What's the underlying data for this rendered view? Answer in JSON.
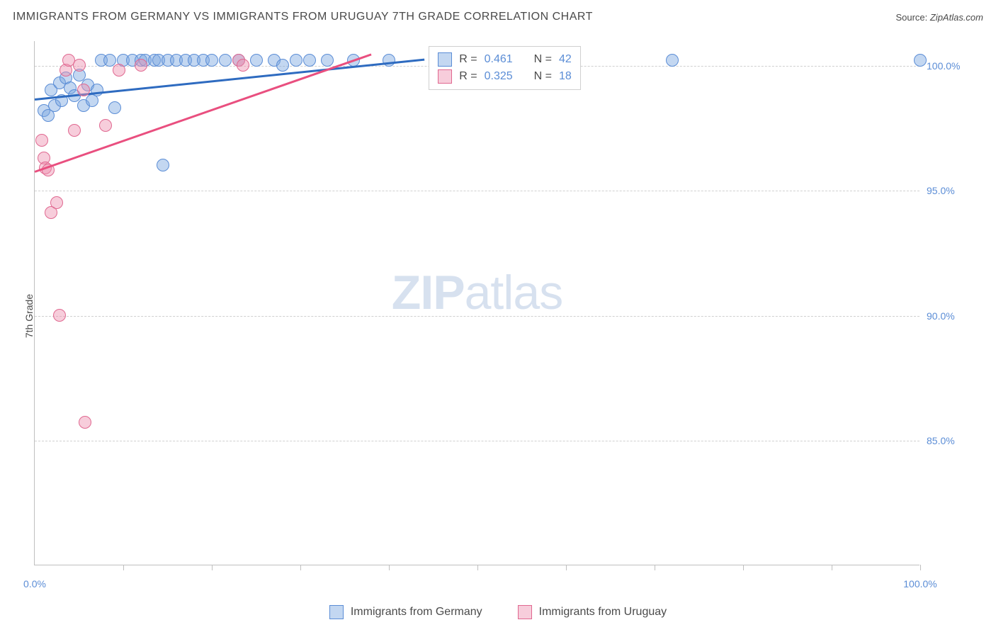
{
  "title": "IMMIGRANTS FROM GERMANY VS IMMIGRANTS FROM URUGUAY 7TH GRADE CORRELATION CHART",
  "source_label": "Source: ",
  "source_value": "ZipAtlas.com",
  "ylabel": "7th Grade",
  "watermark_bold": "ZIP",
  "watermark_rest": "atlas",
  "chart": {
    "type": "scatter",
    "background_color": "#ffffff",
    "grid_color": "#d0d0d0",
    "axis_color": "#bfbfbf",
    "xlim": [
      0,
      100
    ],
    "ylim": [
      80,
      101
    ],
    "x_ticks": [
      0,
      10,
      20,
      30,
      40,
      50,
      60,
      70,
      80,
      90,
      100
    ],
    "x_tick_labels": {
      "0": "0.0%",
      "100": "100.0%"
    },
    "y_gridlines": [
      85,
      90,
      95,
      100
    ],
    "y_tick_labels": {
      "85": "85.0%",
      "90": "90.0%",
      "95": "95.0%",
      "100": "100.0%"
    },
    "marker_radius": 9,
    "label_fontsize": 14,
    "label_color": "#5b8dd6",
    "series": [
      {
        "name": "Immigrants from Germany",
        "fill_color": "rgba(122, 167, 224, 0.45)",
        "stroke_color": "#5b8dd6",
        "line_color": "#2e6bc0",
        "legend_R_label": "R = ",
        "legend_R": "0.461",
        "legend_N_label": "N = ",
        "legend_N": "42",
        "trend_line": {
          "x1": 0,
          "y1": 98.7,
          "x2": 44,
          "y2": 100.3
        },
        "points": [
          {
            "x": 1.0,
            "y": 98.2
          },
          {
            "x": 1.5,
            "y": 98.0
          },
          {
            "x": 1.8,
            "y": 99.0
          },
          {
            "x": 2.2,
            "y": 98.4
          },
          {
            "x": 2.8,
            "y": 99.3
          },
          {
            "x": 3.0,
            "y": 98.6
          },
          {
            "x": 3.5,
            "y": 99.5
          },
          {
            "x": 4.0,
            "y": 99.1
          },
          {
            "x": 4.5,
            "y": 98.8
          },
          {
            "x": 5.0,
            "y": 99.6
          },
          {
            "x": 5.5,
            "y": 98.4
          },
          {
            "x": 6.0,
            "y": 99.2
          },
          {
            "x": 6.5,
            "y": 98.6
          },
          {
            "x": 7.0,
            "y": 99.0
          },
          {
            "x": 7.5,
            "y": 100.2
          },
          {
            "x": 8.5,
            "y": 100.2
          },
          {
            "x": 9.0,
            "y": 98.3
          },
          {
            "x": 10.0,
            "y": 100.2
          },
          {
            "x": 11.0,
            "y": 100.2
          },
          {
            "x": 12.0,
            "y": 100.2
          },
          {
            "x": 12.5,
            "y": 100.2
          },
          {
            "x": 13.5,
            "y": 100.2
          },
          {
            "x": 14.0,
            "y": 100.2
          },
          {
            "x": 14.5,
            "y": 96.0
          },
          {
            "x": 15.0,
            "y": 100.2
          },
          {
            "x": 16.0,
            "y": 100.2
          },
          {
            "x": 17.0,
            "y": 100.2
          },
          {
            "x": 18.0,
            "y": 100.2
          },
          {
            "x": 19.0,
            "y": 100.2
          },
          {
            "x": 20.0,
            "y": 100.2
          },
          {
            "x": 21.5,
            "y": 100.2
          },
          {
            "x": 23.0,
            "y": 100.2
          },
          {
            "x": 25.0,
            "y": 100.2
          },
          {
            "x": 27.0,
            "y": 100.2
          },
          {
            "x": 28.0,
            "y": 100.0
          },
          {
            "x": 29.5,
            "y": 100.2
          },
          {
            "x": 31.0,
            "y": 100.2
          },
          {
            "x": 33.0,
            "y": 100.2
          },
          {
            "x": 36.0,
            "y": 100.2
          },
          {
            "x": 40.0,
            "y": 100.2
          },
          {
            "x": 72.0,
            "y": 100.2
          },
          {
            "x": 100.0,
            "y": 100.2
          }
        ]
      },
      {
        "name": "Immigrants from Uruguay",
        "fill_color": "rgba(238, 145, 175, 0.45)",
        "stroke_color": "#e06890",
        "line_color": "#e94f7f",
        "legend_R_label": "R = ",
        "legend_R": "0.325",
        "legend_N_label": "N = ",
        "legend_N": "18",
        "trend_line": {
          "x1": 0,
          "y1": 95.8,
          "x2": 38,
          "y2": 100.5
        },
        "points": [
          {
            "x": 0.8,
            "y": 97.0
          },
          {
            "x": 1.0,
            "y": 96.3
          },
          {
            "x": 1.2,
            "y": 95.9
          },
          {
            "x": 1.5,
            "y": 95.8
          },
          {
            "x": 1.8,
            "y": 94.1
          },
          {
            "x": 2.5,
            "y": 94.5
          },
          {
            "x": 2.8,
            "y": 90.0
          },
          {
            "x": 3.5,
            "y": 99.8
          },
          {
            "x": 3.8,
            "y": 100.2
          },
          {
            "x": 4.5,
            "y": 97.4
          },
          {
            "x": 5.0,
            "y": 100.0
          },
          {
            "x": 5.5,
            "y": 99.0
          },
          {
            "x": 5.7,
            "y": 85.7
          },
          {
            "x": 8.0,
            "y": 97.6
          },
          {
            "x": 9.5,
            "y": 99.8
          },
          {
            "x": 12.0,
            "y": 100.0
          },
          {
            "x": 23.0,
            "y": 100.2
          },
          {
            "x": 23.5,
            "y": 100.0
          }
        ]
      }
    ]
  },
  "legend_box": {
    "left_pct": 44.5,
    "top_pct": 1
  }
}
